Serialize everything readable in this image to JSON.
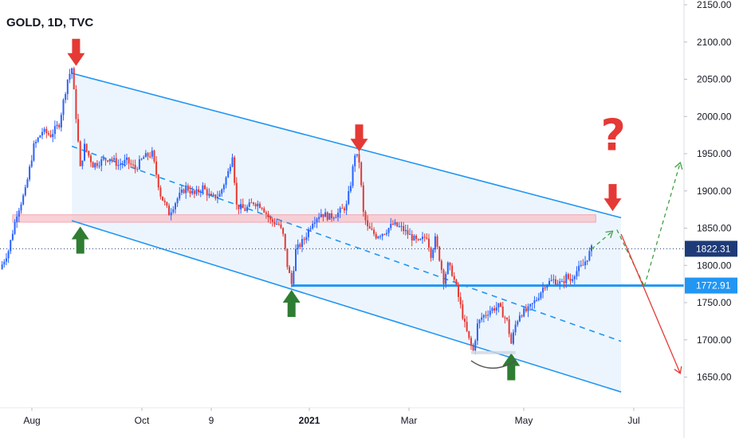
{
  "header": {
    "title": "GOLD, 1D, TVC"
  },
  "colors": {
    "up": "#2962ff",
    "down": "#e53935",
    "channel": "#2196f3",
    "channel_fill": "#eaf4fd",
    "resistance_zone": "#f8c9cf",
    "price_tag": "#1e3a78",
    "support_tag": "#2196f3",
    "arrow_red": "#e53935",
    "arrow_green": "#2e7d32",
    "projection_up": "#43a047",
    "projection_down": "#e53935"
  },
  "tags": {
    "current_price": "1822.31",
    "support_level": "1772.91"
  },
  "annotations": {
    "question_mark": "?"
  },
  "chart_data": {
    "type": "candlestick",
    "title": "GOLD, 1D, TVC",
    "yaxis": {
      "ticks": [
        "2150.00",
        "2100.00",
        "2050.00",
        "2000.00",
        "1950.00",
        "1900.00",
        "1850.00",
        "1800.00",
        "1750.00",
        "1700.00",
        "1650.00"
      ],
      "tick_values": [
        2150,
        2100,
        2050,
        2000,
        1950,
        1900,
        1850,
        1800,
        1750,
        1700,
        1650
      ]
    },
    "xaxis": {
      "ticks": [
        "Aug",
        "Oct",
        "9",
        "2021",
        "Mar",
        "May",
        "Jul"
      ],
      "bold_tick": "2021"
    },
    "current_price": 1822.31,
    "horizontal_support": 1772.91,
    "resistance_zone": [
      1858,
      1868
    ],
    "close_path": [
      [
        0,
        1795
      ],
      [
        4,
        1820
      ],
      [
        8,
        1870
      ],
      [
        12,
        1900
      ],
      [
        16,
        1960
      ],
      [
        20,
        1980
      ],
      [
        24,
        1975
      ],
      [
        28,
        1990
      ],
      [
        30,
        2020
      ],
      [
        32,
        2050
      ],
      [
        34,
        2065
      ],
      [
        36,
        2000
      ],
      [
        38,
        1930
      ],
      [
        40,
        1960
      ],
      [
        44,
        1935
      ],
      [
        48,
        1940
      ],
      [
        52,
        1945
      ],
      [
        56,
        1935
      ],
      [
        60,
        1940
      ],
      [
        64,
        1930
      ],
      [
        68,
        1945
      ],
      [
        72,
        1950
      ],
      [
        76,
        1895
      ],
      [
        80,
        1870
      ],
      [
        84,
        1890
      ],
      [
        88,
        1905
      ],
      [
        92,
        1895
      ],
      [
        96,
        1905
      ],
      [
        100,
        1890
      ],
      [
        104,
        1895
      ],
      [
        108,
        1925
      ],
      [
        110,
        1950
      ],
      [
        112,
        1880
      ],
      [
        116,
        1875
      ],
      [
        120,
        1885
      ],
      [
        124,
        1880
      ],
      [
        128,
        1860
      ],
      [
        132,
        1855
      ],
      [
        134,
        1840
      ],
      [
        136,
        1800
      ],
      [
        138,
        1775
      ],
      [
        140,
        1820
      ],
      [
        144,
        1835
      ],
      [
        148,
        1860
      ],
      [
        152,
        1870
      ],
      [
        156,
        1865
      ],
      [
        160,
        1870
      ],
      [
        164,
        1880
      ],
      [
        166,
        1910
      ],
      [
        168,
        1950
      ],
      [
        170,
        1940
      ],
      [
        172,
        1870
      ],
      [
        174,
        1850
      ],
      [
        178,
        1840
      ],
      [
        182,
        1845
      ],
      [
        186,
        1855
      ],
      [
        190,
        1850
      ],
      [
        194,
        1840
      ],
      [
        198,
        1830
      ],
      [
        202,
        1840
      ],
      [
        204,
        1815
      ],
      [
        206,
        1835
      ],
      [
        208,
        1810
      ],
      [
        210,
        1780
      ],
      [
        212,
        1800
      ],
      [
        214,
        1790
      ],
      [
        216,
        1770
      ],
      [
        218,
        1745
      ],
      [
        220,
        1720
      ],
      [
        222,
        1700
      ],
      [
        224,
        1685
      ],
      [
        226,
        1720
      ],
      [
        228,
        1730
      ],
      [
        232,
        1740
      ],
      [
        236,
        1745
      ],
      [
        240,
        1725
      ],
      [
        242,
        1695
      ],
      [
        244,
        1720
      ],
      [
        246,
        1735
      ],
      [
        250,
        1740
      ],
      [
        254,
        1755
      ],
      [
        258,
        1775
      ],
      [
        262,
        1780
      ],
      [
        266,
        1775
      ],
      [
        268,
        1785
      ],
      [
        270,
        1780
      ],
      [
        272,
        1790
      ],
      [
        276,
        1800
      ],
      [
        280,
        1822
      ]
    ],
    "series": [
      {
        "name": "",
        "type": "line",
        "style": "solid",
        "points": [
          [
            34,
            2058
          ],
          [
            294,
            1864
          ]
        ]
      },
      {
        "name": "",
        "type": "line",
        "style": "dashed",
        "points": [
          [
            34,
            1960
          ],
          [
            294,
            1698
          ]
        ]
      },
      {
        "name": "",
        "type": "line",
        "style": "solid",
        "points": [
          [
            34,
            1860
          ],
          [
            294,
            1630
          ]
        ]
      },
      {
        "name": "",
        "type": "line",
        "style": "dashed",
        "points": [
          [
            280,
            1822
          ],
          [
            290,
            1846
          ]
        ]
      },
      {
        "name": "",
        "type": "line",
        "style": "dashed",
        "points": [
          [
            292,
            1848
          ],
          [
            305,
            1772
          ]
        ]
      },
      {
        "name": "",
        "type": "line",
        "style": "dashed",
        "points": [
          [
            305,
            1772
          ],
          [
            322,
            1938
          ]
        ]
      },
      {
        "name": "",
        "type": "line",
        "style": "solid",
        "points": [
          [
            294,
            1842
          ],
          [
            322,
            1655
          ]
        ]
      }
    ],
    "markers": [
      {
        "kind": "arrow-down",
        "x": 36,
        "y": 2085
      },
      {
        "kind": "arrow-up",
        "x": 38,
        "y": 1835
      },
      {
        "kind": "arrow-up",
        "x": 138,
        "y": 1750
      },
      {
        "kind": "arrow-down",
        "x": 170,
        "y": 1970
      },
      {
        "kind": "arrow-up",
        "x": 242,
        "y": 1665
      },
      {
        "kind": "arrow-down",
        "x": 290,
        "y": 1890
      }
    ]
  }
}
